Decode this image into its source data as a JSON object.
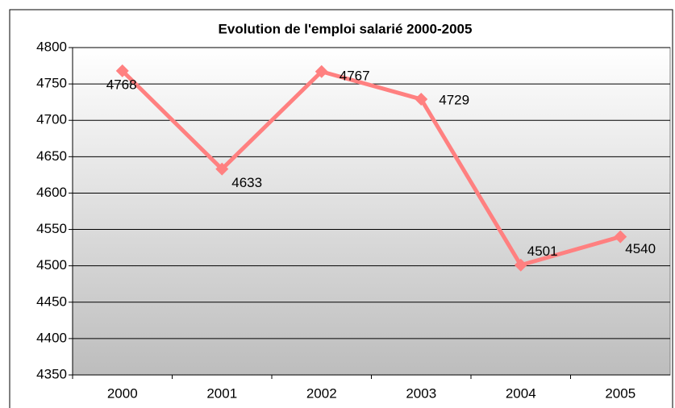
{
  "chart_data": {
    "type": "line",
    "title": "Evolution de l'emploi salarié  2000-2005",
    "categories": [
      "2000",
      "2001",
      "2002",
      "2003",
      "2004",
      "2005"
    ],
    "values": [
      4768,
      4633,
      4767,
      4729,
      4501,
      4540
    ],
    "color": "#ff8080",
    "ylim": [
      4350,
      4800
    ],
    "yticks": [
      4350,
      4400,
      4450,
      4500,
      4550,
      4600,
      4650,
      4700,
      4750,
      4800
    ],
    "grid": true
  }
}
